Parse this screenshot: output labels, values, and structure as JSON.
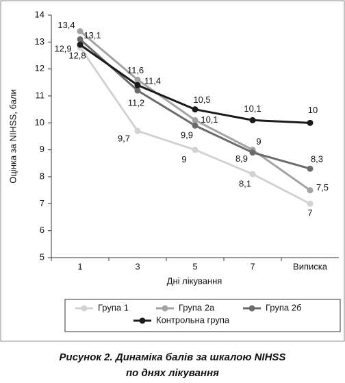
{
  "chart_data": {
    "type": "line",
    "categories": [
      "1",
      "3",
      "5",
      "7",
      "Виписка"
    ],
    "x_label": "Дні лікування",
    "y_label": "Оцінка за NIHSS, бали",
    "ylim": [
      5,
      14
    ],
    "yticks": [
      5,
      6,
      7,
      8,
      9,
      10,
      11,
      12,
      13,
      14
    ],
    "series": [
      {
        "name": "Група 1",
        "color": "#d2d2d2",
        "values": [
          12.8,
          9.7,
          9,
          8.1,
          7
        ],
        "value_labels": [
          "12,8",
          "9,7",
          "9",
          "8,1",
          "7"
        ]
      },
      {
        "name": "Група 2а",
        "color": "#a3a3a3",
        "values": [
          13.4,
          11.6,
          10.1,
          9,
          7.5
        ],
        "value_labels": [
          "13,4",
          "11,6",
          "10,1",
          "9",
          "7,5"
        ]
      },
      {
        "name": "Група 2б",
        "color": "#6b6b6b",
        "values": [
          13.1,
          11.2,
          9.9,
          8.9,
          8.3
        ],
        "value_labels": [
          "13,1",
          "11,2",
          "9,9",
          "8,9",
          "8,3"
        ]
      },
      {
        "name": "Контрольна група",
        "color": "#1a1a1a",
        "values": [
          12.9,
          11.4,
          10.5,
          10.1,
          10
        ],
        "value_labels": [
          "12,9",
          "11,4",
          "10,5",
          "10,1",
          "10"
        ]
      }
    ],
    "caption": [
      "Рисунок 2. Динаміка балів за шкалою NIHSS",
      "по днях лікування"
    ]
  }
}
